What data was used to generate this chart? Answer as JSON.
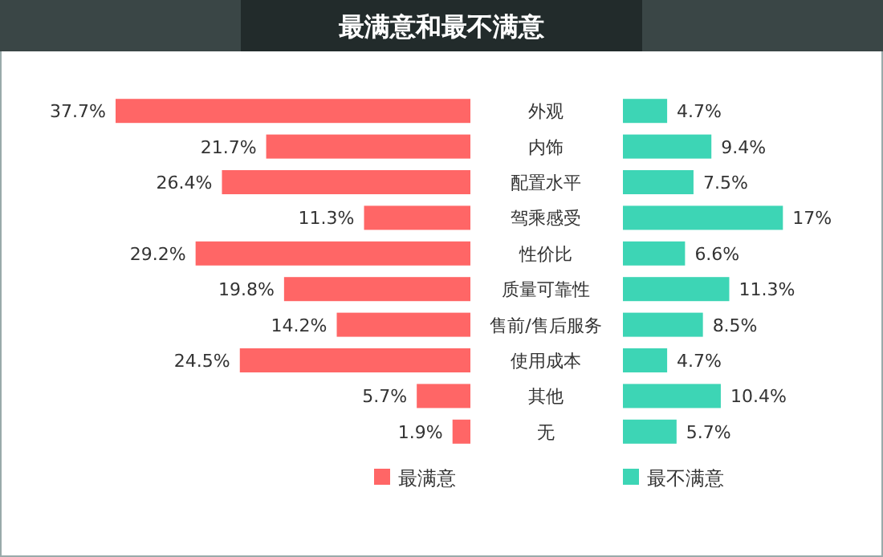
{
  "chart_data": [
    {
      "type": "bar",
      "orientation": "horizontal",
      "title": "最满意和最不满意",
      "categories": [
        "外观",
        "内饰",
        "配置水平",
        "驾乘感受",
        "性价比",
        "质量可靠性",
        "售前/售后服务",
        "使用成本",
        "其他",
        "无"
      ],
      "series": [
        {
          "name": "最满意",
          "color": "#ff6666",
          "values": [
            37.7,
            21.7,
            26.4,
            11.3,
            29.2,
            19.8,
            14.2,
            24.5,
            5.7,
            1.9
          ],
          "value_labels": [
            "37.7%",
            "21.7%",
            "26.4%",
            "11.3%",
            "29.2%",
            "19.8%",
            "14.2%",
            "24.5%",
            "5.7%",
            "1.9%"
          ]
        }
      ],
      "legend": "bottom"
    },
    {
      "type": "bar",
      "orientation": "horizontal",
      "categories": [
        null,
        null,
        null,
        null,
        null,
        null,
        null,
        null,
        null,
        null
      ],
      "series": [
        {
          "name": "最不满意",
          "color": "#3dd5b5",
          "values": [
            4.7,
            9.4,
            7.5,
            17,
            6.6,
            11.3,
            8.5,
            4.7,
            10.4,
            5.7
          ],
          "value_labels": [
            "4.7%",
            "9.4%",
            "7.5%",
            "17%",
            "6.6%",
            "11.3%",
            "8.5%",
            "4.7%",
            "10.4%",
            "5.7%"
          ]
        }
      ],
      "legend": "bottom"
    }
  ]
}
